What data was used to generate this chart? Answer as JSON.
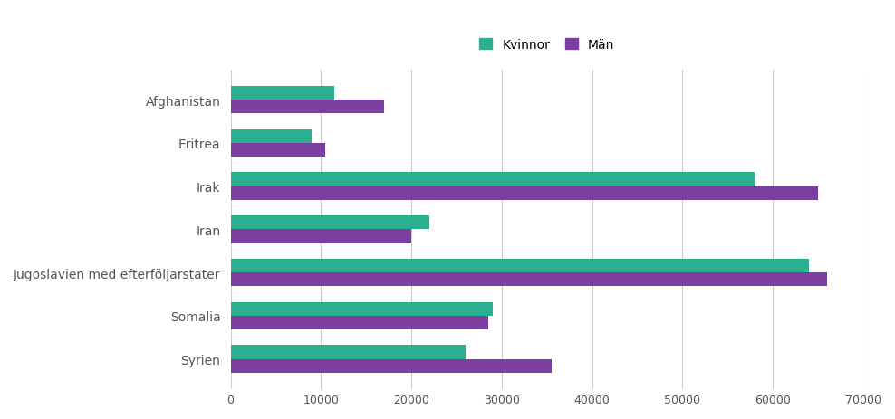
{
  "categories": [
    "Syrien",
    "Somalia",
    "Jugoslavien med efterföljarstater",
    "Iran",
    "Irak",
    "Eritrea",
    "Afghanistan"
  ],
  "kvinnor": [
    26000,
    29000,
    64000,
    22000,
    58000,
    9000,
    11500
  ],
  "man": [
    35500,
    28500,
    66000,
    20000,
    65000,
    10500,
    17000
  ],
  "color_kvinnor": "#2ab08e",
  "color_man": "#7b3fa0",
  "legend_kvinnor": "Kvinnor",
  "legend_man": "Män",
  "xlim": [
    0,
    70000
  ],
  "xticks": [
    0,
    10000,
    20000,
    30000,
    40000,
    50000,
    60000,
    70000
  ],
  "xtick_labels": [
    "0",
    "10000",
    "20000",
    "30000",
    "40000",
    "50000",
    "60000",
    "70000"
  ],
  "background_color": "#ffffff",
  "grid_color": "#cccccc",
  "bar_height": 0.32
}
